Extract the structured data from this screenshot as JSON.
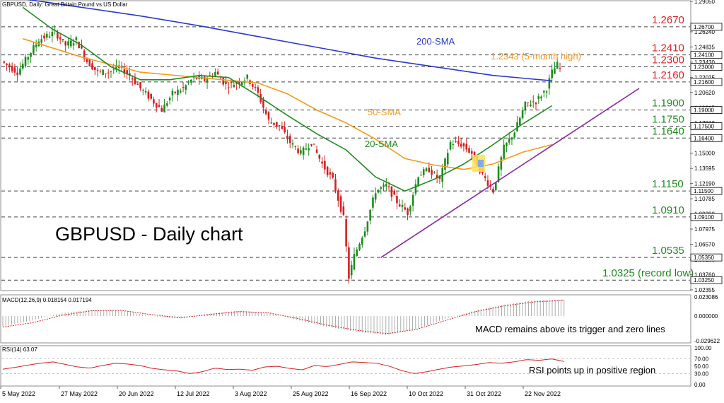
{
  "chart_data": {
    "type": "candlestick",
    "title": "GBPUSD - Daily chart",
    "header": "GBPUSD, Daily:  Great Britain Pound vs US Dollar",
    "x_labels": [
      "5 May 2022",
      "27 May 2022",
      "20 Jun 2022",
      "12 Jul 2022",
      "3 Aug 2022",
      "25 Aug 2022",
      "16 Sep 2022",
      "10 Oct 2022",
      "31 Oct 2022",
      "22 Nov 2022"
    ],
    "y_ticks": [
      "1.29050",
      "1.26240",
      "1.24835",
      "1.23430",
      "1.22025",
      "1.20620",
      "1.19215",
      "1.17810",
      "1.16405",
      "1.15000",
      "1.13595",
      "1.12190",
      "1.10785",
      "1.09380",
      "1.07975",
      "1.06570",
      "1.05165",
      "1.03760",
      "1.02355"
    ],
    "ylim": [
      1.0235,
      1.2905
    ],
    "levels": [
      {
        "value": 1.267,
        "label": "1.2670",
        "axis_label": "1.26700",
        "color": "#e02020"
      },
      {
        "value": 1.241,
        "label": "1.2410",
        "axis_label": "1.24100",
        "color": "#e02020"
      },
      {
        "value": 1.23,
        "label": "1.2300",
        "axis_label": "1.23000",
        "color": "#e02020"
      },
      {
        "value": 1.216,
        "label": "1.2160",
        "axis_label": "1.21600",
        "color": "#e02020"
      },
      {
        "value": 1.19,
        "label": "1.1900",
        "axis_label": "1.19000",
        "color": "#1e8c1e"
      },
      {
        "value": 1.175,
        "label": "1.1750",
        "axis_label": "1.17500",
        "color": "#1e8c1e"
      },
      {
        "value": 1.164,
        "label": "1.1640",
        "axis_label": "1.16400",
        "color": "#1e8c1e"
      },
      {
        "value": 1.115,
        "label": "1.1150",
        "axis_label": "1.11500",
        "color": "#1e8c1e"
      },
      {
        "value": 1.091,
        "label": "1.0910",
        "axis_label": "1.09100",
        "color": "#1e8c1e"
      },
      {
        "value": 1.0535,
        "label": "1.0535",
        "axis_label": "1.05350",
        "color": "#1e8c1e"
      },
      {
        "value": 1.0325,
        "label": "1.0325 (record low)",
        "axis_label": "1.03250",
        "color": "#1e8c1e"
      }
    ],
    "annotations": {
      "high": "1.2343 (5-month high)",
      "sma200": "200-SMA",
      "sma50": "50-SMA",
      "sma20": "20-SMA"
    },
    "colors": {
      "bull": "#1e8c1e",
      "bear": "#d42020",
      "sma200": "#2a3bc8",
      "sma50": "#f39a1e",
      "sma20": "#1e8c1e",
      "trend": "#8a2aa0",
      "level_red": "#e02020",
      "level_green": "#1e8c1e"
    },
    "sma200": [
      [
        0,
        1.293
      ],
      [
        20,
        1.285
      ],
      [
        40,
        1.277
      ],
      [
        60,
        1.268
      ],
      [
        80,
        1.258
      ],
      [
        100,
        1.248
      ],
      [
        120,
        1.238
      ],
      [
        140,
        1.23
      ],
      [
        160,
        1.222
      ],
      [
        170,
        1.2195
      ],
      [
        180,
        1.217
      ]
    ],
    "sma50": [
      [
        0,
        1.256
      ],
      [
        20,
        1.239
      ],
      [
        40,
        1.225
      ],
      [
        60,
        1.22
      ],
      [
        80,
        1.215
      ],
      [
        90,
        1.205
      ],
      [
        100,
        1.19
      ],
      [
        110,
        1.178
      ],
      [
        120,
        1.163
      ],
      [
        130,
        1.145
      ],
      [
        140,
        1.139
      ],
      [
        150,
        1.135
      ],
      [
        160,
        1.14
      ],
      [
        170,
        1.151
      ],
      [
        180,
        1.158
      ]
    ],
    "sma20": [
      [
        0,
        1.285
      ],
      [
        10,
        1.265
      ],
      [
        20,
        1.25
      ],
      [
        30,
        1.23
      ],
      [
        40,
        1.218
      ],
      [
        50,
        1.218
      ],
      [
        60,
        1.222
      ],
      [
        70,
        1.22
      ],
      [
        80,
        1.203
      ],
      [
        90,
        1.185
      ],
      [
        100,
        1.168
      ],
      [
        110,
        1.153
      ],
      [
        120,
        1.128
      ],
      [
        130,
        1.115
      ],
      [
        140,
        1.126
      ],
      [
        150,
        1.14
      ],
      [
        160,
        1.158
      ],
      [
        170,
        1.177
      ],
      [
        180,
        1.194
      ]
    ],
    "trendline": [
      [
        126,
        1.0535
      ],
      [
        205,
        1.21
      ]
    ],
    "macd": {
      "label": "MACD(12,26,9) 0.018154 0.017194",
      "annotation": "MACD remains above its trigger and zero lines",
      "ylim": [
        -0.029622,
        0.023086
      ],
      "ticks": [
        "0.023086",
        "0.000000",
        "-0.029622"
      ],
      "histogram": [
        -0.012,
        -0.005,
        0.004,
        0.0075,
        0.007,
        0.0,
        -0.003,
        0.003,
        0.0065,
        0.004,
        -0.005,
        -0.013,
        -0.019,
        -0.023,
        -0.015,
        -0.003,
        0.007,
        0.014,
        0.019,
        0.02
      ],
      "signal": [
        -0.013,
        -0.008,
        0.001,
        0.0065,
        0.007,
        0.002,
        -0.002,
        0.002,
        0.0055,
        0.004,
        -0.003,
        -0.011,
        -0.017,
        -0.021,
        -0.016,
        -0.005,
        0.0055,
        0.0125,
        0.0172,
        0.019
      ]
    },
    "rsi": {
      "label": "RSI(14) 63.07",
      "annotation": "RSI points up in positive region",
      "ylim": [
        0,
        100
      ],
      "ticks": [
        "100.00",
        "70.00",
        "50.00",
        "30.00",
        "0.00"
      ],
      "values": [
        42,
        47,
        53,
        58,
        62,
        55,
        48,
        45,
        52,
        58,
        56,
        52,
        44,
        40,
        37,
        30,
        35,
        45,
        41,
        42,
        39,
        48,
        50,
        44,
        40,
        52,
        49,
        55,
        62,
        60,
        58,
        50,
        38,
        30,
        35,
        42,
        48,
        51,
        55,
        60,
        58,
        62,
        68,
        66,
        70,
        63
      ]
    }
  }
}
